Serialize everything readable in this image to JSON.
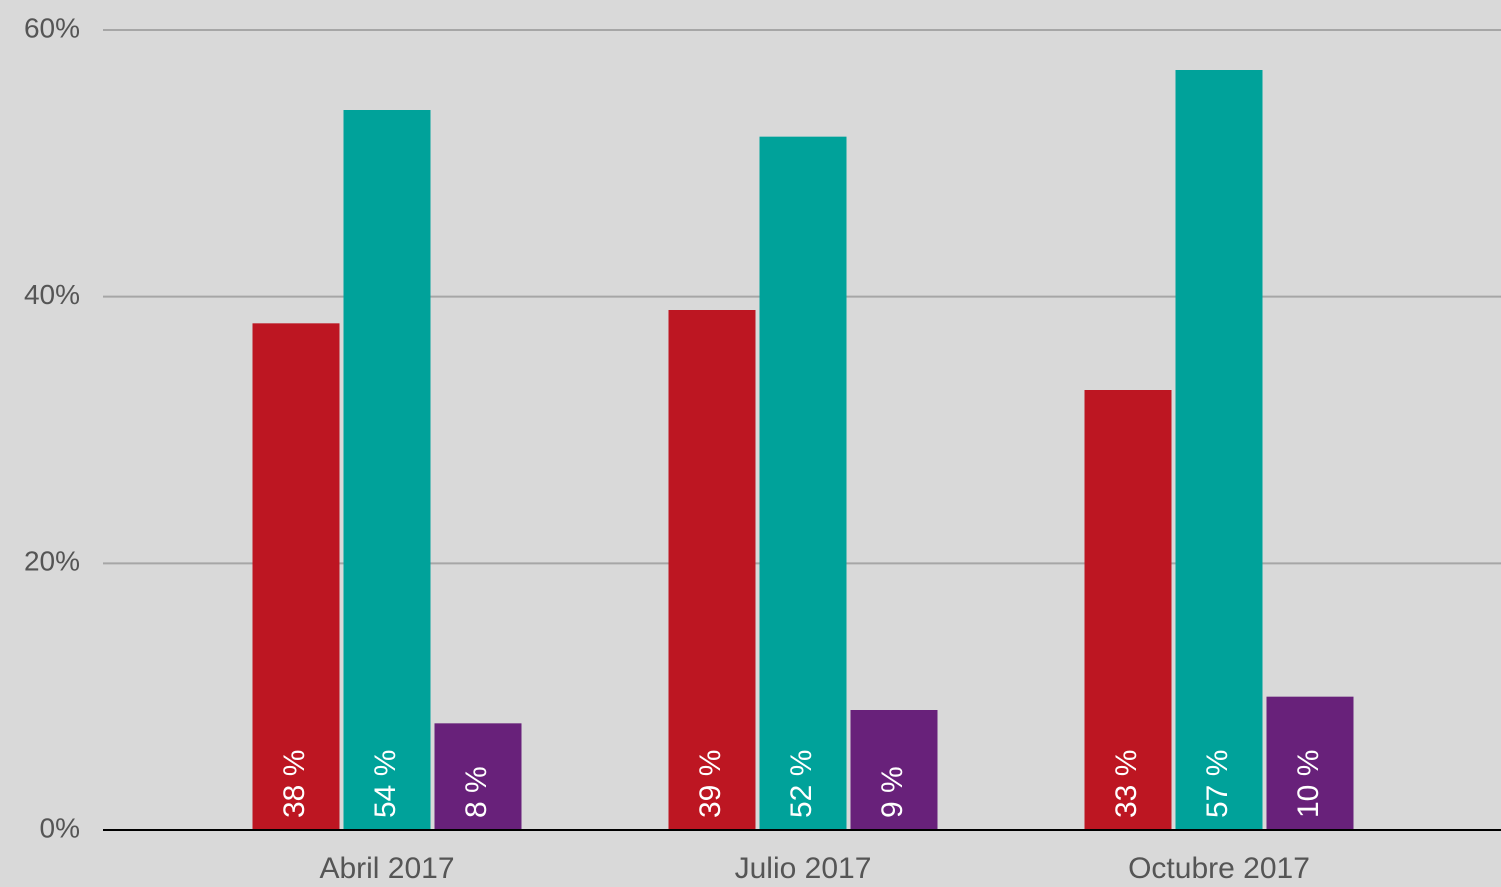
{
  "chart_data": {
    "type": "bar",
    "categories": [
      "Abril 2017",
      "Julio 2017",
      "Octubre 2017"
    ],
    "series": [
      {
        "color": "#bd1622",
        "values": [
          38,
          39,
          33
        ],
        "value_labels": [
          "38 %",
          "39 %",
          "33 %"
        ]
      },
      {
        "color": "#00a29a",
        "values": [
          54,
          52,
          57
        ],
        "value_labels": [
          "54 %",
          "52 %",
          "57 %"
        ]
      },
      {
        "color": "#68217a",
        "values": [
          8,
          9,
          10
        ],
        "value_labels": [
          "8 %",
          "9 %",
          "10 %"
        ]
      }
    ],
    "ylim": [
      0,
      60
    ],
    "yticks": [
      {
        "value": 0,
        "label": "0%"
      },
      {
        "value": 20,
        "label": "20%"
      },
      {
        "value": 40,
        "label": "40%"
      },
      {
        "value": 60,
        "label": "60%"
      }
    ],
    "grid": true
  }
}
